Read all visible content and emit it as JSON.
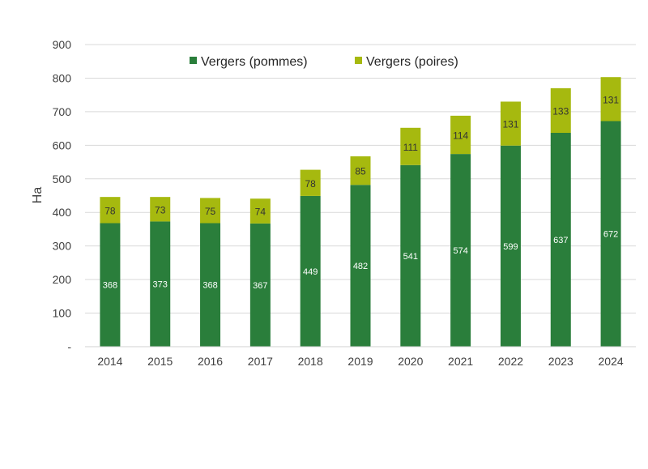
{
  "chart_data": {
    "type": "bar",
    "stacked": true,
    "title": "",
    "xlabel": "",
    "ylabel": "Ha",
    "ylim": [
      0,
      900
    ],
    "yticks": [
      {
        "value": 0,
        "label": "-"
      },
      {
        "value": 100,
        "label": "100"
      },
      {
        "value": 200,
        "label": "200"
      },
      {
        "value": 300,
        "label": "300"
      },
      {
        "value": 400,
        "label": "400"
      },
      {
        "value": 500,
        "label": "500"
      },
      {
        "value": 600,
        "label": "600"
      },
      {
        "value": 700,
        "label": "700"
      },
      {
        "value": 800,
        "label": "800"
      },
      {
        "value": 900,
        "label": "900"
      }
    ],
    "grid": true,
    "legend_position": "top",
    "categories": [
      "2014",
      "2015",
      "2016",
      "2017",
      "2018",
      "2019",
      "2020",
      "2021",
      "2022",
      "2023",
      "2024"
    ],
    "series": [
      {
        "name": "Vergers (pommes)",
        "color": "#2a7e3b",
        "values": [
          368,
          373,
          368,
          367,
          449,
          482,
          541,
          574,
          599,
          637,
          672
        ]
      },
      {
        "name": "Vergers (poires)",
        "color": "#a6b90f",
        "values": [
          78,
          73,
          75,
          74,
          78,
          85,
          111,
          114,
          131,
          133,
          131
        ]
      }
    ]
  }
}
